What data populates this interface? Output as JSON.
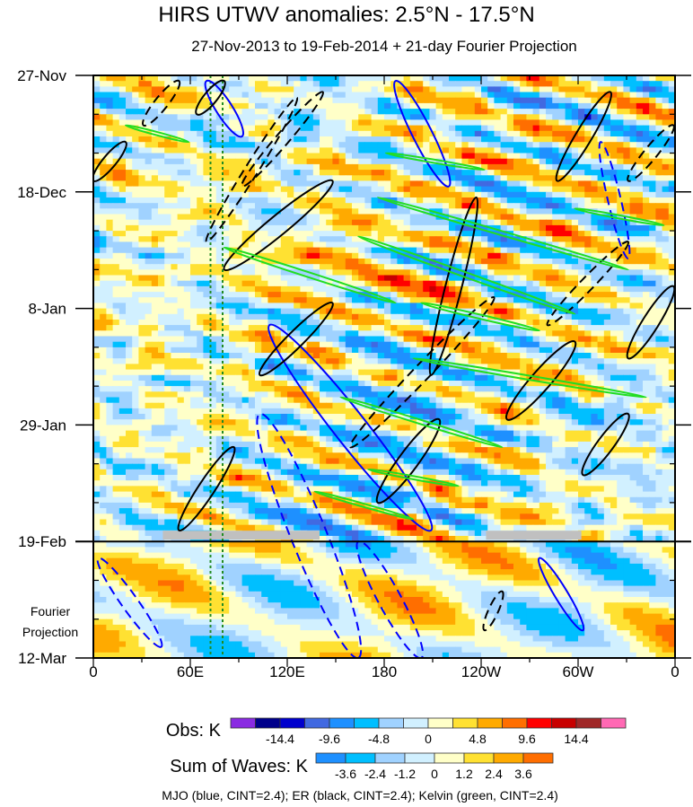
{
  "chart_data": {
    "type": "heatmap",
    "title": "HIRS UTWV anomalies: 2.5°N - 17.5°N",
    "subtitle": "27-Nov-2013 to 19-Feb-2014 + 21-day Fourier Projection",
    "xlabel": "",
    "ylabel": "",
    "xlim_lon": [
      0,
      360
    ],
    "ylim_days": [
      0,
      105
    ],
    "x_ticks": [
      {
        "lon": 0,
        "label": "0"
      },
      {
        "lon": 60,
        "label": "60E"
      },
      {
        "lon": 120,
        "label": "120E"
      },
      {
        "lon": 180,
        "label": "180"
      },
      {
        "lon": 240,
        "label": "120W"
      },
      {
        "lon": 300,
        "label": "60W"
      },
      {
        "lon": 360,
        "label": "0"
      }
    ],
    "y_ticks": [
      {
        "day": 0,
        "label": "27-Nov"
      },
      {
        "day": 21,
        "label": "18-Dec"
      },
      {
        "day": 42,
        "label": "8-Jan"
      },
      {
        "day": 63,
        "label": "29-Jan"
      },
      {
        "day": 84,
        "label": "19-Feb"
      },
      {
        "day": 105,
        "label": "12-Mar"
      }
    ],
    "projection_start_day": 84,
    "projection_label": [
      "Fourier",
      "Projection"
    ],
    "reference_lines_lon": [
      72.5,
      80
    ],
    "reference_line_color": "#228B22",
    "missing_data_segments_lon": [
      [
        43,
        140
      ],
      [
        243,
        302
      ]
    ],
    "obs_colorbar": {
      "label": "Obs: K",
      "levels": [
        -16.8,
        -14.4,
        -12.0,
        -9.6,
        -7.2,
        -4.8,
        -2.4,
        0,
        2.4,
        4.8,
        7.2,
        9.6,
        12.0,
        14.4,
        16.8
      ],
      "tick_labels": [
        "-14.4",
        "-9.6",
        "-4.8",
        "0",
        "4.8",
        "9.6",
        "14.4"
      ],
      "colors": [
        "#8a2be2",
        "#00008b",
        "#0000cd",
        "#4169e1",
        "#1e90ff",
        "#00bfff",
        "#a0d2ff",
        "#d1f0ff",
        "#ffffc8",
        "#ffe132",
        "#ffaa00",
        "#ff6e00",
        "#ff0000",
        "#c80000",
        "#a02828",
        "#ff69b4"
      ]
    },
    "waves_colorbar": {
      "label": "Sum of Waves: K",
      "levels": [
        -3.6,
        -2.4,
        -1.2,
        0,
        1.2,
        2.4,
        3.6
      ],
      "tick_labels": [
        "-3.6",
        "-2.4",
        "-1.2",
        "0",
        "1.2",
        "2.4",
        "3.6"
      ],
      "colors": [
        "#1e90ff",
        "#00bfff",
        "#a0d2ff",
        "#d1f0ff",
        "#ffffc8",
        "#ffe132",
        "#ffaa00",
        "#ff6e00"
      ]
    },
    "contours": {
      "MJO": {
        "color": "#0000ff",
        "cint": 2.4,
        "positive": [
          [
            70,
            1,
            92,
            11,
            10
          ],
          [
            109,
            45,
            209,
            82,
            20
          ],
          [
            187,
            1,
            220,
            20,
            12
          ],
          [
            276,
            87,
            303,
            100,
            8
          ]
        ],
        "negative": [
          [
            103,
            61,
            164,
            105,
            22
          ],
          [
            3,
            87,
            42,
            103,
            10
          ],
          [
            164,
            84,
            203,
            105,
            14
          ],
          [
            314,
            12,
            331,
            33,
            8
          ]
        ]
      },
      "ER": {
        "color": "#000000",
        "cint": 2.4,
        "positive": [
          [
            287,
            19,
            320,
            3,
            10
          ],
          [
            256,
            62,
            298,
            48,
            12
          ],
          [
            303,
            72,
            331,
            61,
            10
          ],
          [
            209,
            54,
            237,
            22,
            10
          ],
          [
            53,
            82,
            87,
            67,
            10
          ],
          [
            103,
            54,
            148,
            41,
            10
          ],
          [
            81,
            35,
            148,
            19,
            12
          ],
          [
            0,
            19,
            20,
            12,
            8
          ],
          [
            64,
            7,
            81,
            1,
            8
          ],
          [
            176,
            77,
            214,
            62,
            12
          ],
          [
            331,
            51,
            359,
            38,
            10
          ]
        ],
        "negative": [
          [
            70,
            30,
            126,
            4,
            8
          ],
          [
            31,
            9,
            53,
            1,
            8
          ],
          [
            92,
            20,
            142,
            3,
            8
          ],
          [
            281,
            45,
            331,
            30,
            8
          ],
          [
            159,
            67,
            248,
            40,
            10
          ],
          [
            331,
            19,
            359,
            9,
            8
          ],
          [
            242,
            100,
            253,
            93,
            6
          ]
        ]
      },
      "Kelvin": {
        "color": "#22dd22",
        "cint": 2.4,
        "positive": [
          [
            20,
            9,
            59,
            12,
            2
          ],
          [
            81,
            31,
            187,
            41,
            3
          ],
          [
            164,
            29,
            298,
            43,
            3
          ],
          [
            176,
            22,
            331,
            35,
            2.5
          ],
          [
            203,
            41,
            276,
            46,
            2.5
          ],
          [
            153,
            58,
            253,
            67,
            2.5
          ],
          [
            198,
            51,
            342,
            58,
            2.5
          ],
          [
            181,
            14,
            242,
            17,
            2
          ],
          [
            298,
            24,
            353,
            27,
            2
          ],
          [
            137,
            75,
            198,
            80,
            2
          ],
          [
            170,
            71,
            226,
            74,
            2
          ]
        ],
        "negative": []
      }
    },
    "footer": "MJO (blue, CINT=2.4); ER (black, CINT=2.4); Kelvin (green, CINT=2.4)"
  }
}
